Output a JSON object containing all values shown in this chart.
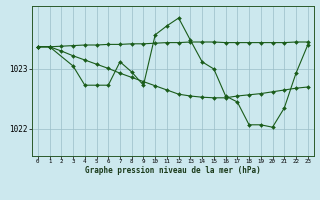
{
  "title": "Graphe pression niveau de la mer (hPa)",
  "bg_color": "#cce8ee",
  "grid_color": "#9bbec8",
  "line_color": "#1a5c1a",
  "xlim_min": -0.5,
  "xlim_max": 23.5,
  "ylim_min": 1021.55,
  "ylim_max": 1024.05,
  "yticks": [
    1022.0,
    1023.0
  ],
  "xticks": [
    0,
    1,
    2,
    3,
    4,
    5,
    6,
    7,
    8,
    9,
    10,
    11,
    12,
    13,
    14,
    15,
    16,
    17,
    18,
    19,
    20,
    21,
    22,
    23
  ],
  "line_a_x": [
    0,
    1,
    2,
    3,
    4,
    5,
    6,
    7,
    8,
    9,
    10,
    11,
    12,
    13,
    14,
    15,
    16,
    17,
    18,
    19,
    20,
    21,
    22,
    23
  ],
  "line_a_y": [
    1023.37,
    1023.37,
    1023.38,
    1023.39,
    1023.4,
    1023.4,
    1023.41,
    1023.41,
    1023.42,
    1023.42,
    1023.43,
    1023.44,
    1023.44,
    1023.45,
    1023.45,
    1023.45,
    1023.44,
    1023.44,
    1023.44,
    1023.44,
    1023.44,
    1023.44,
    1023.45,
    1023.45
  ],
  "line_b_x": [
    0,
    1,
    2,
    3,
    4,
    5,
    6,
    7,
    8,
    9,
    10,
    11,
    12,
    13,
    14,
    15,
    16,
    17,
    18,
    19,
    20,
    21,
    22,
    23
  ],
  "line_b_y": [
    1023.37,
    1023.37,
    1023.3,
    1023.22,
    1023.15,
    1023.08,
    1023.01,
    1022.93,
    1022.86,
    1022.79,
    1022.72,
    1022.65,
    1022.58,
    1022.55,
    1022.53,
    1022.52,
    1022.52,
    1022.55,
    1022.57,
    1022.59,
    1022.62,
    1022.65,
    1022.68,
    1022.7
  ],
  "line_c_x": [
    0,
    1,
    3,
    4,
    5,
    6,
    7,
    8,
    9,
    10,
    11,
    12,
    13,
    14,
    15,
    16,
    17,
    18,
    19,
    20,
    21,
    22,
    23
  ],
  "line_c_y": [
    1023.37,
    1023.37,
    1023.05,
    1022.73,
    1022.73,
    1022.73,
    1023.12,
    1022.95,
    1022.73,
    1023.57,
    1023.72,
    1023.85,
    1023.48,
    1023.12,
    1023.0,
    1022.55,
    1022.45,
    1022.07,
    1022.07,
    1022.03,
    1022.35,
    1022.93,
    1023.4
  ]
}
